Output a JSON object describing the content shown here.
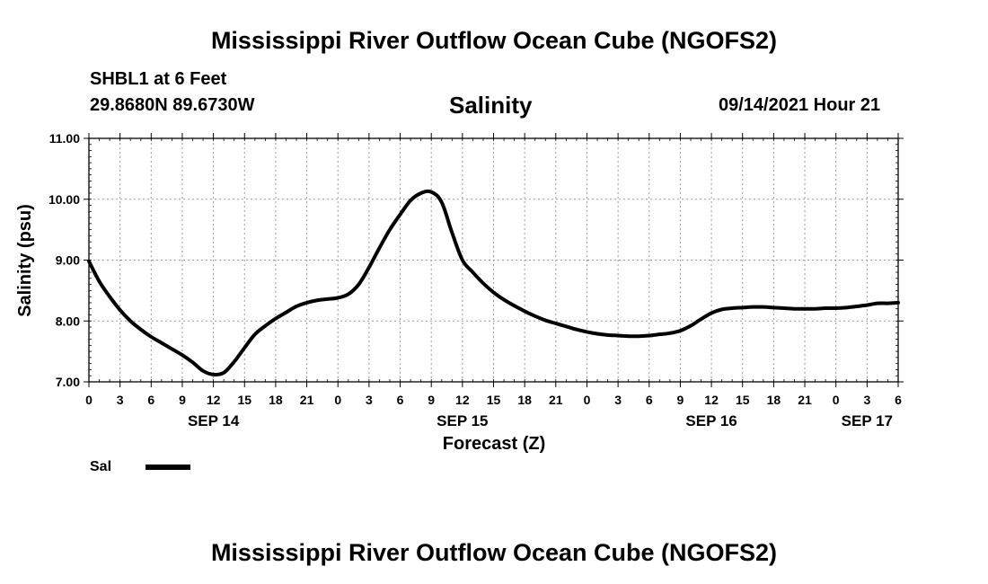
{
  "header": {
    "title": "Mississippi River Outflow Ocean Cube (NGOFS2)",
    "station": "SHBL1 at 6 Feet",
    "coords": "29.8680N  89.6730W",
    "variable": "Salinity",
    "datetime": "09/14/2021 Hour 21"
  },
  "footer": {
    "title": "Mississippi River Outflow Ocean Cube (NGOFS2)"
  },
  "chart_data": {
    "type": "line",
    "title": "Salinity",
    "xlabel": "Forecast (Z)",
    "ylabel": "Salinity (psu)",
    "xlim": [
      0,
      78
    ],
    "ylim": [
      7.0,
      11.0
    ],
    "yticks": [
      "7.00",
      "8.00",
      "9.00",
      "10.00",
      "11.00"
    ],
    "ytick_values": [
      7.0,
      8.0,
      9.0,
      10.0,
      11.0
    ],
    "xtick_labels": [
      "0",
      "3",
      "6",
      "9",
      "12",
      "15",
      "18",
      "21",
      "0",
      "3",
      "6",
      "9",
      "12",
      "15",
      "18",
      "21",
      "0",
      "3",
      "6",
      "9",
      "12",
      "15",
      "18",
      "21",
      "0",
      "3",
      "6"
    ],
    "day_labels": [
      {
        "label": "SEP 14",
        "hour": 12
      },
      {
        "label": "SEP 15",
        "hour": 36
      },
      {
        "label": "SEP 16",
        "hour": 60
      },
      {
        "label": "SEP 17",
        "hour": 75
      }
    ],
    "grid": true,
    "legend": [
      {
        "name": "Sal",
        "color": "#000000"
      }
    ],
    "series": [
      {
        "name": "Sal",
        "x": [
          0,
          1,
          2,
          3,
          4,
          5,
          6,
          7,
          8,
          9,
          10,
          11,
          12,
          13,
          14,
          15,
          16,
          17,
          18,
          19,
          20,
          21,
          22,
          23,
          24,
          25,
          26,
          27,
          28,
          29,
          30,
          31,
          32,
          33,
          34,
          35,
          36,
          37,
          38,
          39,
          40,
          41,
          42,
          43,
          44,
          45,
          46,
          47,
          48,
          49,
          50,
          51,
          52,
          53,
          54,
          55,
          56,
          57,
          58,
          59,
          60,
          61,
          62,
          63,
          64,
          65,
          66,
          67,
          68,
          69,
          70,
          71,
          72,
          73,
          74,
          75,
          76,
          77,
          78
        ],
        "values": [
          8.98,
          8.65,
          8.4,
          8.18,
          8.0,
          7.86,
          7.74,
          7.64,
          7.54,
          7.44,
          7.32,
          7.18,
          7.12,
          7.15,
          7.33,
          7.56,
          7.78,
          7.92,
          8.04,
          8.14,
          8.24,
          8.3,
          8.34,
          8.36,
          8.38,
          8.44,
          8.6,
          8.88,
          9.2,
          9.5,
          9.75,
          9.98,
          10.1,
          10.12,
          9.95,
          9.45,
          9.0,
          8.8,
          8.62,
          8.47,
          8.35,
          8.25,
          8.16,
          8.08,
          8.01,
          7.96,
          7.91,
          7.86,
          7.82,
          7.79,
          7.77,
          7.76,
          7.75,
          7.75,
          7.76,
          7.78,
          7.8,
          7.84,
          7.92,
          8.03,
          8.13,
          8.19,
          8.21,
          8.22,
          8.23,
          8.23,
          8.22,
          8.21,
          8.2,
          8.2,
          8.2,
          8.21,
          8.21,
          8.22,
          8.24,
          8.26,
          8.29,
          8.29,
          8.3
        ]
      }
    ]
  }
}
